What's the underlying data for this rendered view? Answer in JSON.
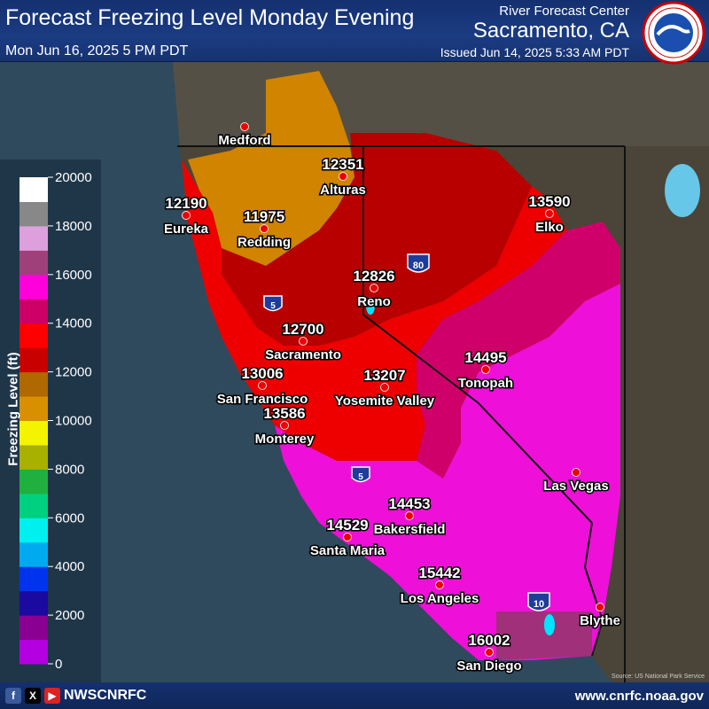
{
  "header": {
    "title": "Forecast Freezing Level Monday Evening",
    "valid_time": "Mon Jun 16, 2025 5 PM PDT",
    "office_line": "River Forecast Center",
    "office_city": "Sacramento, CA",
    "issued": "Issued Jun 14, 2025 5:33 AM PDT",
    "logo_text": "NATIONAL WEATHER SERVICE"
  },
  "legend": {
    "title": "Freezing Level (ft)",
    "ticks": [
      "20000",
      "18000",
      "16000",
      "14000",
      "12000",
      "10000",
      "8000",
      "6000",
      "4000",
      "2000",
      "0"
    ],
    "colors": {
      "purple_dark": "#b400e0",
      "purple": "#8a0090",
      "navy": "#1a0aa0",
      "blue": "#0033ee",
      "sky": "#00aaee",
      "cyan": "#00f0f0",
      "teal": "#00d080",
      "green": "#20b040",
      "olive": "#a8b000",
      "yellow": "#f4f400",
      "orange": "#d89000",
      "brown": "#b06800",
      "dark_red": "#c80000",
      "red": "#ff0000",
      "crimson": "#cc0066",
      "magenta": "#ff00dd",
      "mauve": "#a0407a",
      "pink": "#dda0dd",
      "grey": "#888888",
      "white": "#ffffff"
    }
  },
  "highways": [
    "5",
    "80",
    "5",
    "10"
  ],
  "cities": [
    {
      "name": "Medford",
      "value": ""
    },
    {
      "name": "Alturas",
      "value": "12351"
    },
    {
      "name": "Eureka",
      "value": "12190"
    },
    {
      "name": "Redding",
      "value": "11975"
    },
    {
      "name": "Elko",
      "value": "13590"
    },
    {
      "name": "Reno",
      "value": "12826"
    },
    {
      "name": "Sacramento",
      "value": "12700"
    },
    {
      "name": "San Francisco",
      "value": "13006"
    },
    {
      "name": "Yosemite Valley",
      "value": "13207"
    },
    {
      "name": "Tonopah",
      "value": "14495"
    },
    {
      "name": "Monterey",
      "value": "13586"
    },
    {
      "name": "Las Vegas",
      "value": ""
    },
    {
      "name": "Bakersfield",
      "value": "14453"
    },
    {
      "name": "Santa Maria",
      "value": "14529"
    },
    {
      "name": "Los Angeles",
      "value": "15442"
    },
    {
      "name": "Blythe",
      "value": ""
    },
    {
      "name": "San Diego",
      "value": "16002"
    }
  ],
  "footer": {
    "handle": "NWSCNRFC",
    "website": "www.cnrfc.noaa.gov",
    "credit": "Source: US National Park Service"
  }
}
